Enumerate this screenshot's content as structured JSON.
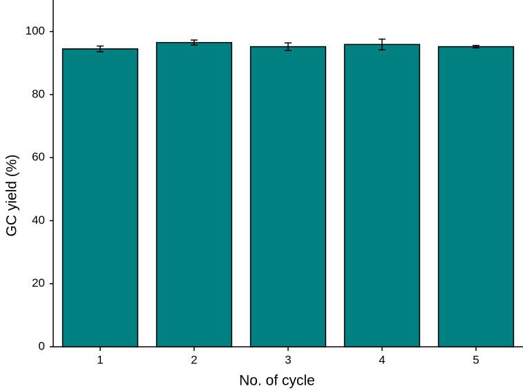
{
  "chart_data": {
    "type": "bar",
    "x_label": "No. of cycle",
    "y_label": "GC yield (%)",
    "categories": [
      "1",
      "2",
      "3",
      "4",
      "5"
    ],
    "values": [
      94.5,
      96.5,
      95.2,
      95.9,
      95.2
    ],
    "errors": [
      0.9,
      0.8,
      1.2,
      1.7,
      0.4
    ],
    "color": "#008080",
    "ylim": [
      0,
      110
    ],
    "yticks": [
      0,
      20,
      40,
      60,
      80,
      100
    ],
    "grid": false
  }
}
